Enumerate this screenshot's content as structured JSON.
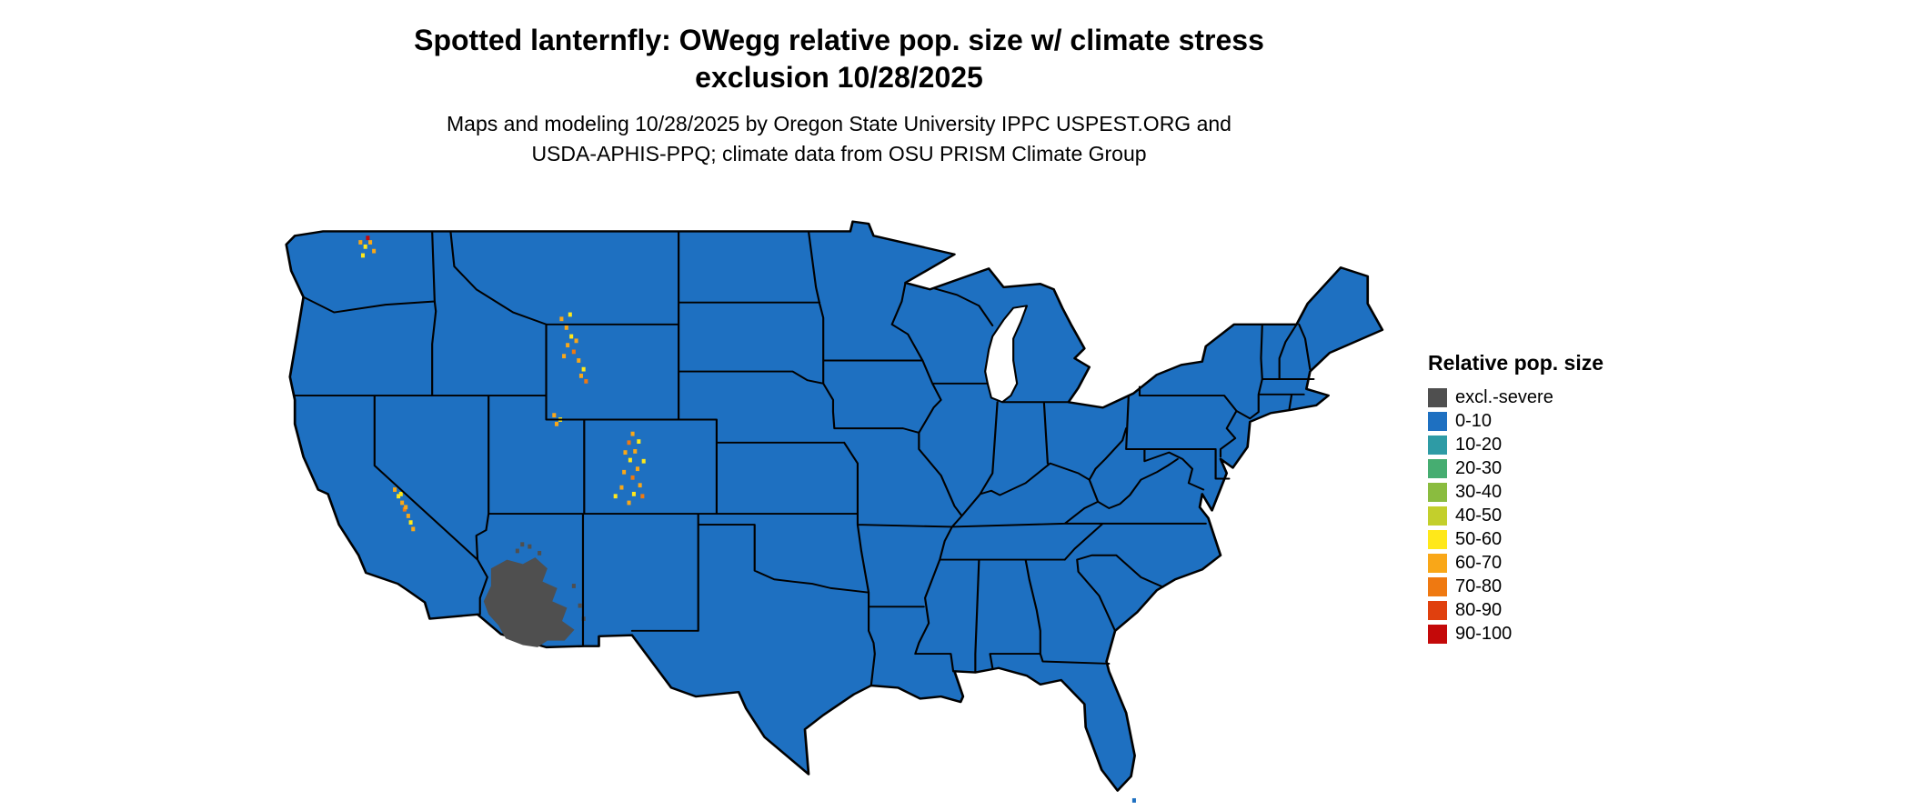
{
  "header": {
    "title_line1": "Spotted lanternfly: OWegg relative pop. size w/ climate stress",
    "title_line2": "exclusion 10/28/2025",
    "subtitle_line1": "Maps and modeling 10/28/2025 by Oregon State University IPPC USPEST.ORG and",
    "subtitle_line2": "USDA-APHIS-PPQ; climate data from OSU PRISM Climate Group"
  },
  "legend": {
    "title": "Relative pop. size",
    "items": [
      {
        "label": "excl.-severe",
        "color": "#4f4f4f"
      },
      {
        "label": "0-10",
        "color": "#1e70c1"
      },
      {
        "label": "10-20",
        "color": "#2e9ba5"
      },
      {
        "label": "20-30",
        "color": "#46ad71"
      },
      {
        "label": "30-40",
        "color": "#8abc3f"
      },
      {
        "label": "40-50",
        "color": "#c3cf2c"
      },
      {
        "label": "50-60",
        "color": "#ffe81a"
      },
      {
        "label": "60-70",
        "color": "#f9a718"
      },
      {
        "label": "70-80",
        "color": "#ef7911"
      },
      {
        "label": "80-90",
        "color": "#e0400e"
      },
      {
        "label": "90-100",
        "color": "#c40909"
      }
    ]
  },
  "map": {
    "background": "#ffffff",
    "base_fill": "#1e70c1",
    "base_fill_meaning": "0-10 relative pop. size (covers nearly all of CONUS)",
    "exclusion_fill": "#4f4f4f",
    "exclusion_region": "climate stress exclusion area in southwestern Arizona",
    "border_color": "#000000",
    "speckle_colors": {
      "o": "#f9a718",
      "y": "#ffe81a",
      "d": "#ef7911",
      "r": "#c40909",
      "x": "#4f4f4f",
      "b": "#1e70c1"
    },
    "speckle_clusters": [
      {
        "name": "north-cascades-wa",
        "dots": [
          [
            64,
            30,
            "o"
          ],
          [
            68,
            34,
            "y"
          ],
          [
            72,
            30,
            "o"
          ],
          [
            75,
            38,
            "o"
          ],
          [
            66,
            42,
            "y"
          ],
          [
            70,
            26,
            "r"
          ]
        ]
      },
      {
        "name": "absaroka-wind-river-wy",
        "dots": [
          [
            228,
            100,
            "o"
          ],
          [
            232,
            108,
            "o"
          ],
          [
            236,
            116,
            "y"
          ],
          [
            233,
            124,
            "o"
          ],
          [
            238,
            130,
            "d"
          ],
          [
            242,
            138,
            "o"
          ],
          [
            246,
            146,
            "y"
          ],
          [
            240,
            120,
            "o"
          ],
          [
            235,
            96,
            "y"
          ],
          [
            230,
            134,
            "o"
          ],
          [
            244,
            152,
            "o"
          ],
          [
            248,
            157,
            "d"
          ]
        ]
      },
      {
        "name": "uinta-ut",
        "dots": [
          [
            222,
            188,
            "o"
          ],
          [
            227,
            192,
            "y"
          ],
          [
            224,
            196,
            "o"
          ]
        ]
      },
      {
        "name": "colorado-rockies",
        "dots": [
          [
            286,
            205,
            "o"
          ],
          [
            283,
            213,
            "d"
          ],
          [
            288,
            221,
            "o"
          ],
          [
            284,
            229,
            "y"
          ],
          [
            290,
            237,
            "o"
          ],
          [
            286,
            245,
            "d"
          ],
          [
            292,
            252,
            "o"
          ],
          [
            287,
            260,
            "y"
          ],
          [
            283,
            268,
            "o"
          ],
          [
            295,
            230,
            "y"
          ],
          [
            279,
            240,
            "o"
          ],
          [
            291,
            212,
            "y"
          ],
          [
            280,
            222,
            "o"
          ],
          [
            294,
            262,
            "d"
          ],
          [
            277,
            254,
            "o"
          ],
          [
            272,
            262,
            "y"
          ]
        ]
      },
      {
        "name": "sierra-nevada-ca",
        "dots": [
          [
            92,
            256,
            "o"
          ],
          [
            95,
            262,
            "y"
          ],
          [
            98,
            268,
            "o"
          ],
          [
            100,
            274,
            "d"
          ],
          [
            103,
            280,
            "o"
          ],
          [
            105,
            286,
            "y"
          ],
          [
            107,
            292,
            "o"
          ],
          [
            97,
            260,
            "y"
          ],
          [
            101,
            272,
            "o"
          ]
        ]
      },
      {
        "name": "arizona-exclusion-fringe",
        "dots": [
          [
            192,
            312,
            "x"
          ],
          [
            202,
            308,
            "x"
          ],
          [
            210,
            314,
            "x"
          ],
          [
            243,
            362,
            "x"
          ],
          [
            246,
            374,
            "x"
          ],
          [
            238,
            344,
            "x"
          ],
          [
            196,
            306,
            "x"
          ]
        ]
      },
      {
        "name": "islands-se-of-florida",
        "dots": [
          [
            695,
            540,
            "b"
          ],
          [
            702,
            546,
            "b"
          ],
          [
            690,
            552,
            "b"
          ]
        ]
      }
    ]
  }
}
